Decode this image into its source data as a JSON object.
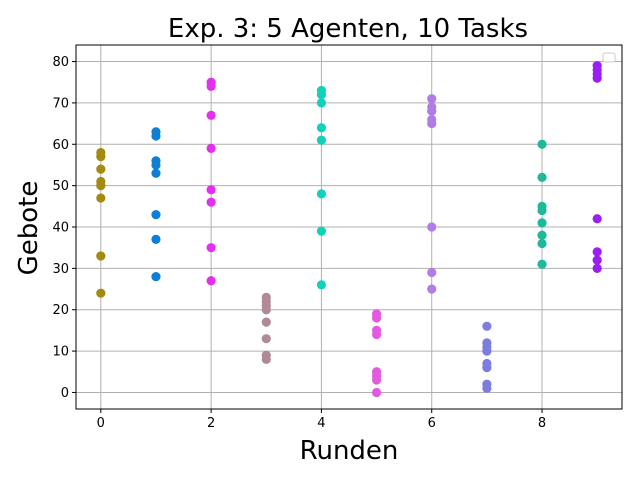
{
  "chart_data": {
    "type": "scatter",
    "title": "Exp. 3: 5 Agenten, 10 Tasks",
    "xlabel": "Runden",
    "ylabel": "Gebote",
    "xlim": [
      -0.45,
      9.45
    ],
    "ylim": [
      -4,
      84
    ],
    "xticks": [
      0,
      2,
      4,
      6,
      8
    ],
    "yticks": [
      0,
      10,
      20,
      30,
      40,
      50,
      60,
      70,
      80
    ],
    "grid": true,
    "legend": "top-right (empty)",
    "series": [
      {
        "x": 0,
        "color": "#a38a10",
        "values": [
          58,
          57,
          54,
          51,
          50,
          47,
          33,
          24
        ]
      },
      {
        "x": 1,
        "color": "#0f7fd6",
        "values": [
          63,
          62,
          56,
          55,
          53,
          43,
          37,
          28
        ]
      },
      {
        "x": 2,
        "color": "#e42ff0",
        "values": [
          75,
          74,
          67,
          59,
          49,
          46,
          35,
          27
        ]
      },
      {
        "x": 3,
        "color": "#b08a94",
        "values": [
          23,
          22,
          21,
          20,
          17,
          13,
          9,
          8
        ]
      },
      {
        "x": 4,
        "color": "#10d2b9",
        "values": [
          73,
          72,
          70,
          64,
          61,
          48,
          39,
          26
        ]
      },
      {
        "x": 5,
        "color": "#e35ae0",
        "values": [
          19,
          18,
          15,
          14,
          5,
          4,
          3,
          0
        ]
      },
      {
        "x": 6,
        "color": "#b07ce8",
        "values": [
          71,
          69,
          68,
          66,
          65,
          40,
          29,
          25
        ]
      },
      {
        "x": 7,
        "color": "#7d7de0",
        "values": [
          16,
          12,
          11,
          10,
          7,
          6,
          2,
          1
        ]
      },
      {
        "x": 8,
        "color": "#1eb89a",
        "values": [
          60,
          52,
          45,
          44,
          41,
          38,
          36,
          31
        ]
      },
      {
        "x": 9,
        "color": "#9b1ff0",
        "values": [
          79,
          78,
          77,
          76,
          42,
          34,
          32,
          30
        ]
      }
    ]
  }
}
